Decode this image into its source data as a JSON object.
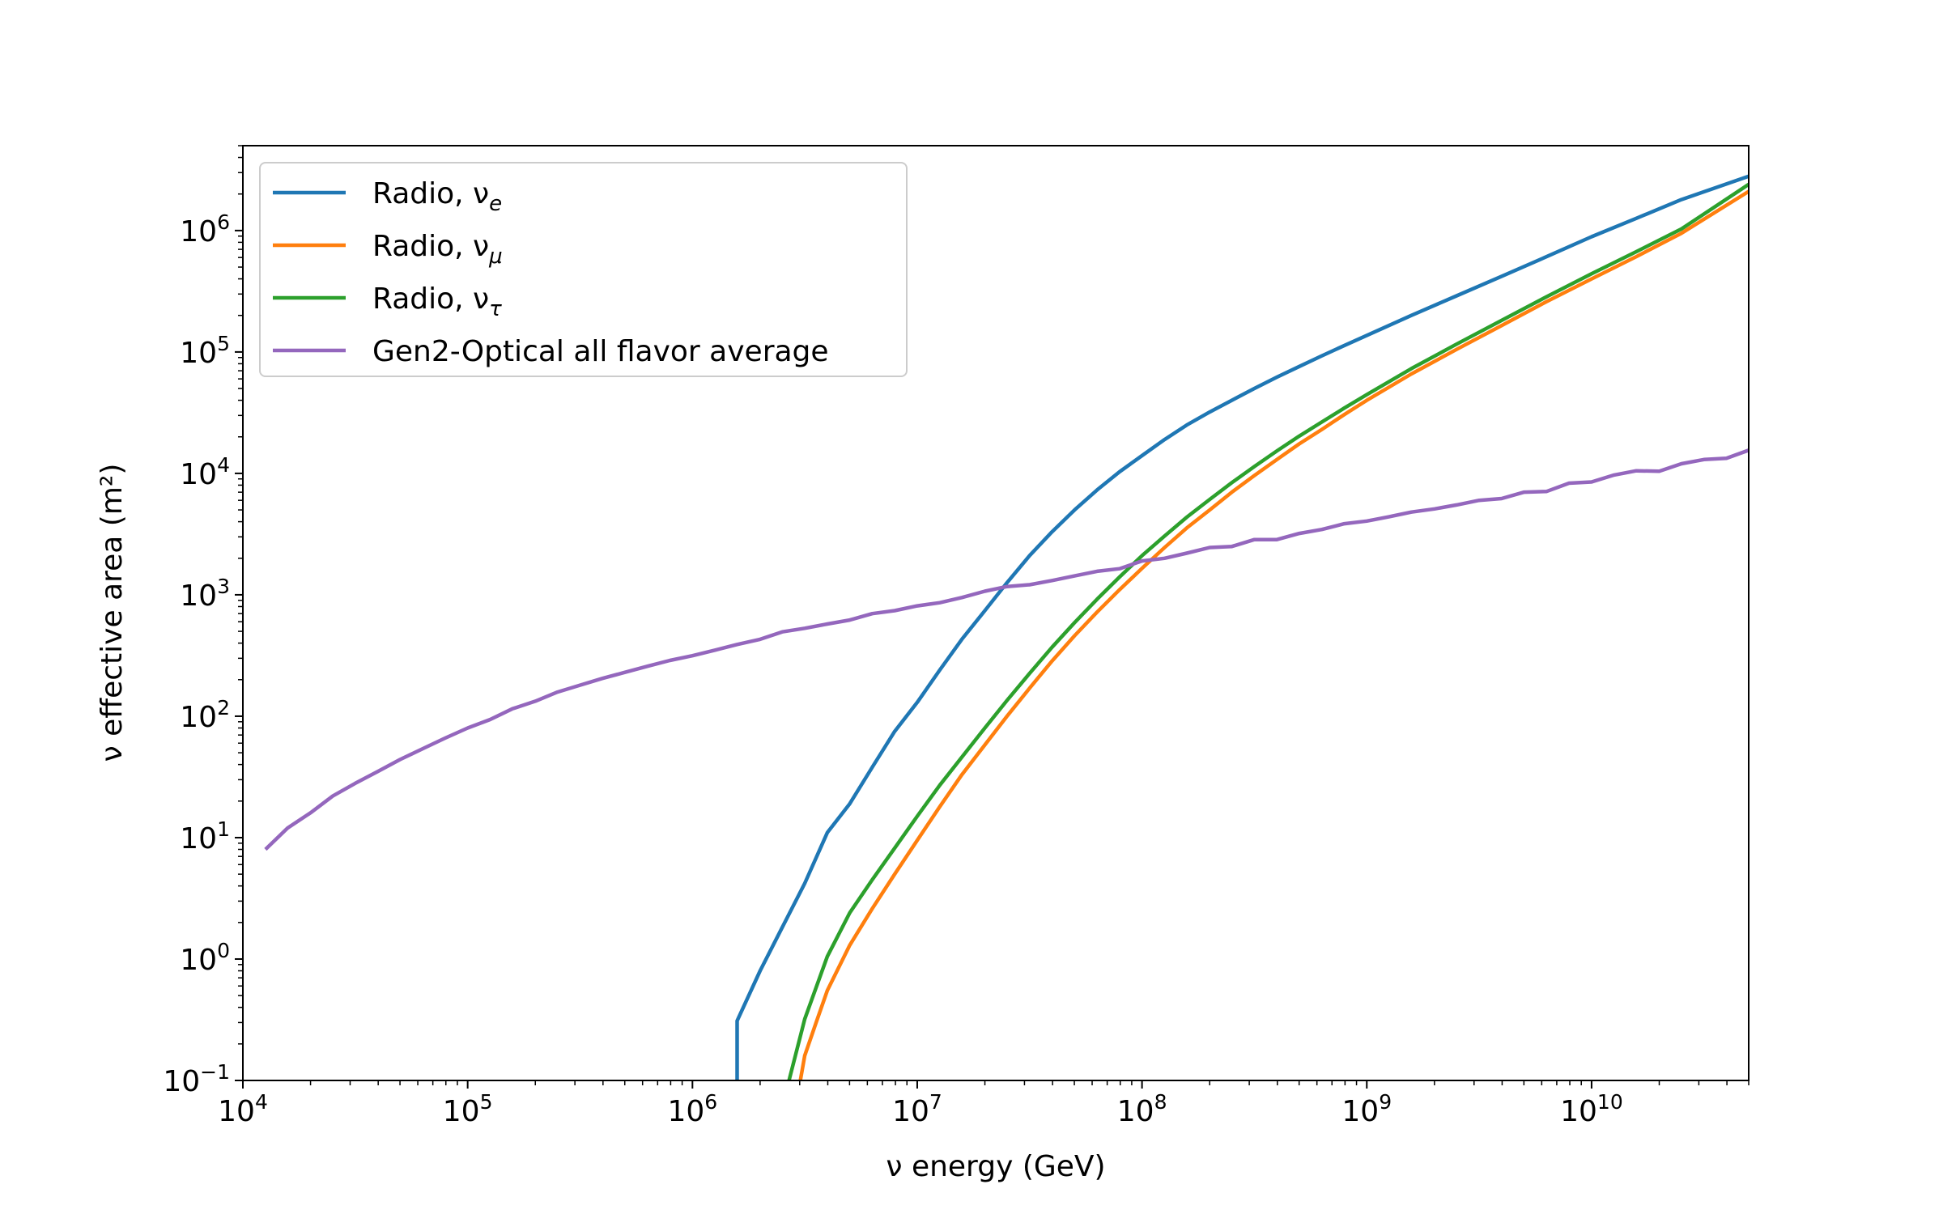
{
  "chart_data": {
    "type": "line",
    "xlabel": "ν energy (GeV)",
    "ylabel": "ν effective area (m²)",
    "x_scale": "log",
    "y_scale": "log",
    "xlim": [
      10000,
      50000000000
    ],
    "ylim": [
      0.1,
      5000000
    ],
    "grid": false,
    "legend_position": "top-left",
    "x_ticks": [
      {
        "value": 10000,
        "base": "10",
        "exp": "4"
      },
      {
        "value": 100000,
        "base": "10",
        "exp": "5"
      },
      {
        "value": 1000000,
        "base": "10",
        "exp": "6"
      },
      {
        "value": 10000000,
        "base": "10",
        "exp": "7"
      },
      {
        "value": 100000000,
        "base": "10",
        "exp": "8"
      },
      {
        "value": 1000000000,
        "base": "10",
        "exp": "9"
      },
      {
        "value": 10000000000,
        "base": "10",
        "exp": "10"
      }
    ],
    "y_ticks": [
      {
        "value": 0.1,
        "base": "10",
        "exp": "−1"
      },
      {
        "value": 1,
        "base": "10",
        "exp": "0"
      },
      {
        "value": 10,
        "base": "10",
        "exp": "1"
      },
      {
        "value": 100,
        "base": "10",
        "exp": "2"
      },
      {
        "value": 1000,
        "base": "10",
        "exp": "3"
      },
      {
        "value": 10000,
        "base": "10",
        "exp": "4"
      },
      {
        "value": 100000,
        "base": "10",
        "exp": "5"
      },
      {
        "value": 1000000,
        "base": "10",
        "exp": "6"
      }
    ],
    "series": [
      {
        "name": "Radio, νe",
        "label_main": "Radio, ν",
        "label_sub": "e",
        "color": "#1f77b4",
        "points": [
          [
            1580000,
            0.1
          ],
          [
            1580000,
            0.31
          ],
          [
            2000000,
            0.8
          ],
          [
            2500000,
            1.8
          ],
          [
            3160000,
            4.2
          ],
          [
            3980000,
            11
          ],
          [
            5010000,
            19
          ],
          [
            6310000,
            38
          ],
          [
            7940000,
            75
          ],
          [
            10000000,
            130
          ],
          [
            12600000,
            240
          ],
          [
            15800000,
            430
          ],
          [
            20000000,
            740
          ],
          [
            25100000,
            1260
          ],
          [
            31600000,
            2100
          ],
          [
            39800000,
            3300
          ],
          [
            50100000,
            5000
          ],
          [
            63100000,
            7300
          ],
          [
            79400000,
            10300
          ],
          [
            100000000,
            14000
          ],
          [
            126000000,
            19000
          ],
          [
            158000000,
            25000
          ],
          [
            200000000,
            32000
          ],
          [
            251000000,
            40000
          ],
          [
            316000000,
            50000
          ],
          [
            398000000,
            62000
          ],
          [
            501000000,
            76000
          ],
          [
            631000000,
            93000
          ],
          [
            794000000,
            113000
          ],
          [
            1000000000,
            137000
          ],
          [
            1580000000,
            200000
          ],
          [
            2510000000,
            290000
          ],
          [
            3980000000,
            420000
          ],
          [
            6310000000,
            610000
          ],
          [
            10000000000,
            890000
          ],
          [
            15800000000,
            1260000
          ],
          [
            25100000000,
            1800000
          ],
          [
            50000000000,
            2800000
          ]
        ]
      },
      {
        "name": "Radio, νμ",
        "label_main": "Radio, ν",
        "label_sub": "μ",
        "color": "#ff7f0e",
        "points": [
          [
            3020000,
            0.1
          ],
          [
            3160000,
            0.16
          ],
          [
            3550000,
            0.3
          ],
          [
            3980000,
            0.55
          ],
          [
            5010000,
            1.3
          ],
          [
            6310000,
            2.6
          ],
          [
            7940000,
            5
          ],
          [
            10000000,
            9.5
          ],
          [
            12600000,
            18
          ],
          [
            15800000,
            33
          ],
          [
            20000000,
            58
          ],
          [
            25100000,
            100
          ],
          [
            31600000,
            170
          ],
          [
            39800000,
            285
          ],
          [
            50100000,
            460
          ],
          [
            63100000,
            720
          ],
          [
            79400000,
            1100
          ],
          [
            100000000,
            1650
          ],
          [
            126000000,
            2450
          ],
          [
            158000000,
            3550
          ],
          [
            200000000,
            5000
          ],
          [
            251000000,
            7000
          ],
          [
            316000000,
            9600
          ],
          [
            398000000,
            13000
          ],
          [
            501000000,
            17500
          ],
          [
            631000000,
            23000
          ],
          [
            794000000,
            30500
          ],
          [
            1000000000,
            40000
          ],
          [
            1580000000,
            66000
          ],
          [
            2510000000,
            105000
          ],
          [
            3980000000,
            165000
          ],
          [
            6310000000,
            260000
          ],
          [
            10000000000,
            400000
          ],
          [
            15800000000,
            610000
          ],
          [
            25100000000,
            950000
          ],
          [
            50000000000,
            2100000
          ]
        ]
      },
      {
        "name": "Radio, ντ",
        "label_main": "Radio, ν",
        "label_sub": "τ",
        "color": "#2ca02c",
        "points": [
          [
            2690000,
            0.1
          ],
          [
            3160000,
            0.32
          ],
          [
            3980000,
            1.05
          ],
          [
            5010000,
            2.4
          ],
          [
            6310000,
            4.5
          ],
          [
            7940000,
            8.2
          ],
          [
            10000000,
            15
          ],
          [
            12600000,
            27
          ],
          [
            15800000,
            46
          ],
          [
            20000000,
            80
          ],
          [
            25100000,
            135
          ],
          [
            31600000,
            225
          ],
          [
            39800000,
            370
          ],
          [
            50100000,
            590
          ],
          [
            63100000,
            920
          ],
          [
            79400000,
            1400
          ],
          [
            100000000,
            2100
          ],
          [
            126000000,
            3050
          ],
          [
            158000000,
            4350
          ],
          [
            200000000,
            6100
          ],
          [
            251000000,
            8400
          ],
          [
            316000000,
            11400
          ],
          [
            398000000,
            15300
          ],
          [
            501000000,
            20300
          ],
          [
            631000000,
            26500
          ],
          [
            794000000,
            34500
          ],
          [
            1000000000,
            44500
          ],
          [
            1580000000,
            73000
          ],
          [
            2510000000,
            116000
          ],
          [
            3980000000,
            182000
          ],
          [
            6310000000,
            285000
          ],
          [
            10000000000,
            440000
          ],
          [
            15800000000,
            670000
          ],
          [
            25100000000,
            1030000
          ],
          [
            50000000000,
            2400000
          ]
        ]
      },
      {
        "name": "Gen2-Optical all flavor average",
        "label_main": "Gen2-Optical all flavor average",
        "label_sub": "",
        "color": "#9467bd",
        "points": [
          [
            12600,
            8
          ],
          [
            15800,
            12
          ],
          [
            20000,
            16
          ],
          [
            25100,
            22
          ],
          [
            31600,
            28
          ],
          [
            39800,
            35
          ],
          [
            50100,
            44
          ],
          [
            63100,
            54
          ],
          [
            79400,
            66
          ],
          [
            100000,
            80
          ],
          [
            126000,
            94
          ],
          [
            158000,
            115
          ],
          [
            200000,
            133
          ],
          [
            251000,
            158
          ],
          [
            316000,
            180
          ],
          [
            398000,
            205
          ],
          [
            501000,
            230
          ],
          [
            631000,
            258
          ],
          [
            794000,
            288
          ],
          [
            1000000,
            315
          ],
          [
            1260000,
            350
          ],
          [
            1580000,
            390
          ],
          [
            2000000,
            430
          ],
          [
            2510000,
            495
          ],
          [
            3160000,
            530
          ],
          [
            3980000,
            575
          ],
          [
            5010000,
            620
          ],
          [
            6310000,
            700
          ],
          [
            7940000,
            740
          ],
          [
            10000000,
            810
          ],
          [
            12600000,
            860
          ],
          [
            15800000,
            950
          ],
          [
            20000000,
            1070
          ],
          [
            25100000,
            1170
          ],
          [
            31600000,
            1210
          ],
          [
            39800000,
            1310
          ],
          [
            50100000,
            1430
          ],
          [
            63100000,
            1560
          ],
          [
            79400000,
            1640
          ],
          [
            100000000,
            1900
          ],
          [
            126000000,
            2000
          ],
          [
            158000000,
            2200
          ],
          [
            200000000,
            2450
          ],
          [
            251000000,
            2500
          ],
          [
            316000000,
            2850
          ],
          [
            398000000,
            2850
          ],
          [
            501000000,
            3200
          ],
          [
            631000000,
            3450
          ],
          [
            794000000,
            3850
          ],
          [
            1000000000,
            4050
          ],
          [
            1260000000,
            4400
          ],
          [
            1580000000,
            4800
          ],
          [
            2000000000,
            5100
          ],
          [
            2510000000,
            5500
          ],
          [
            3160000000,
            6000
          ],
          [
            3980000000,
            6200
          ],
          [
            5010000000,
            7000
          ],
          [
            6310000000,
            7100
          ],
          [
            7940000000,
            8300
          ],
          [
            10000000000,
            8500
          ],
          [
            12600000000,
            9700
          ],
          [
            15800000000,
            10500
          ],
          [
            20000000000,
            10400
          ],
          [
            25100000000,
            12000
          ],
          [
            31600000000,
            13000
          ],
          [
            39800000000,
            13300
          ],
          [
            50000000000,
            15500
          ]
        ]
      }
    ]
  }
}
